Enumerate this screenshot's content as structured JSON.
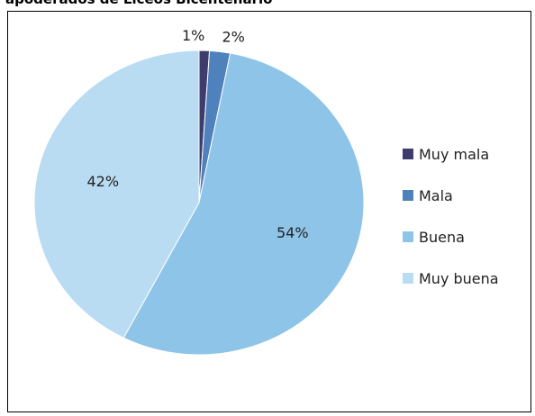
{
  "chart_data": {
    "type": "pie",
    "title": "apoderados de Liceos Bicentenario",
    "categories": [
      "Muy mala",
      "Mala",
      "Buena",
      "Muy buena"
    ],
    "values": [
      1,
      2,
      54,
      42
    ],
    "value_labels": [
      "1%",
      "2%",
      "54%",
      "42%"
    ],
    "colors": [
      "#3e3c6c",
      "#4f81bd",
      "#8fc4e9",
      "#b9dcf2"
    ],
    "legend": "right"
  }
}
